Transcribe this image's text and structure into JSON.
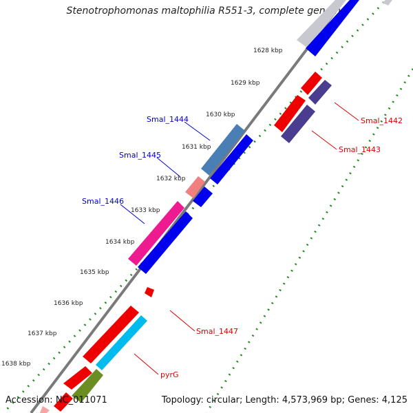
{
  "title": "Stenotrophomonas maltophilia R551-3, complete genome",
  "footer": {
    "accession": "Accession: NC_011071",
    "summary": "Topology: circular; Length: 4,573,969 bp; Genes: 4,125"
  },
  "colors": {
    "backbone": "#7a7a7a",
    "tick_dots": "#1f8a1f",
    "label_forward": "#0000cc",
    "label_reverse": "#dd0000"
  },
  "ticks": [
    "1628 kbp",
    "1629 kbp",
    "1630 kbp",
    "1631 kbp",
    "1632 kbp",
    "1633 kbp",
    "1634 kbp",
    "1635 kbp",
    "1636 kbp",
    "1637 kbp",
    "1638 kbp"
  ],
  "gene_labels": [
    {
      "text": "Smal_1444",
      "color": "#0000cc"
    },
    {
      "text": "Smal_1445",
      "color": "#0000cc"
    },
    {
      "text": "Smal_1446",
      "color": "#0000cc"
    },
    {
      "text": "Smal_1442",
      "color": "#dd0000"
    },
    {
      "text": "Smal_1443",
      "color": "#dd0000"
    },
    {
      "text": "Smal_1447",
      "color": "#dd0000"
    },
    {
      "text": "pyrG",
      "color": "#dd0000"
    }
  ]
}
